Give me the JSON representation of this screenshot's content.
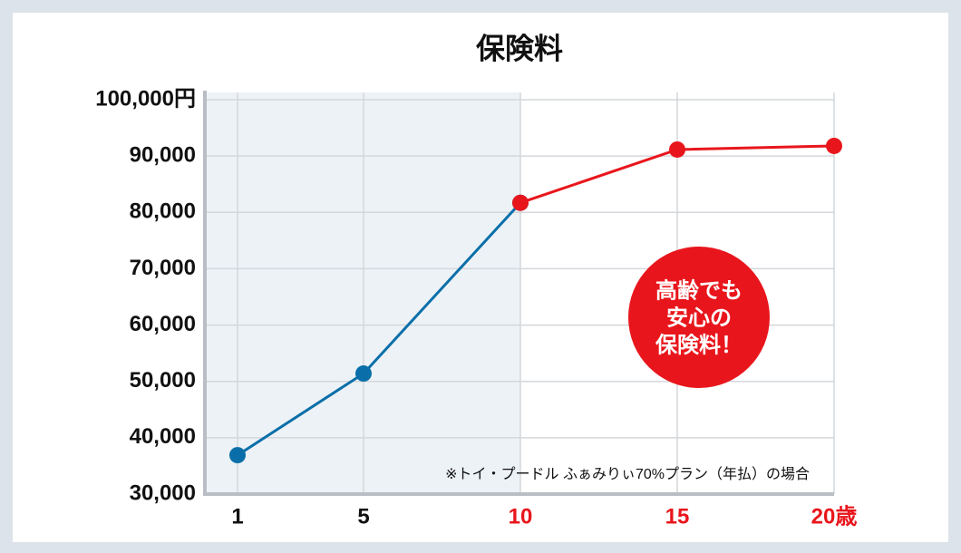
{
  "chart_data": {
    "type": "line",
    "title": "保険料",
    "categories": [
      "1",
      "5",
      "10",
      "15",
      "20歳"
    ],
    "xtick_colors": [
      "#111111",
      "#111111",
      "#e8161c",
      "#e8161c",
      "#e8161c"
    ],
    "series": [
      {
        "color": "#0a6fa8",
        "values": [
          36900,
          51400,
          81700,
          null,
          null
        ]
      },
      {
        "color": "#e8161c",
        "values": [
          null,
          null,
          81700,
          91150,
          91800
        ]
      }
    ],
    "ylim": [
      30000,
      100000
    ],
    "yticks": [
      30000,
      40000,
      50000,
      60000,
      70000,
      80000,
      90000,
      100000
    ],
    "ytick_labels": [
      "30,000",
      "40,000",
      "50,000",
      "60,000",
      "70,000",
      "80,000",
      "90,000",
      "100,000円"
    ],
    "grid": true,
    "badge": {
      "lines": [
        "高齢でも",
        "安心の",
        "保険料！"
      ],
      "color": "#e8161c"
    },
    "note": "※トイ・プードル ふぁみりぃ70%プラン（年払）の場合"
  }
}
